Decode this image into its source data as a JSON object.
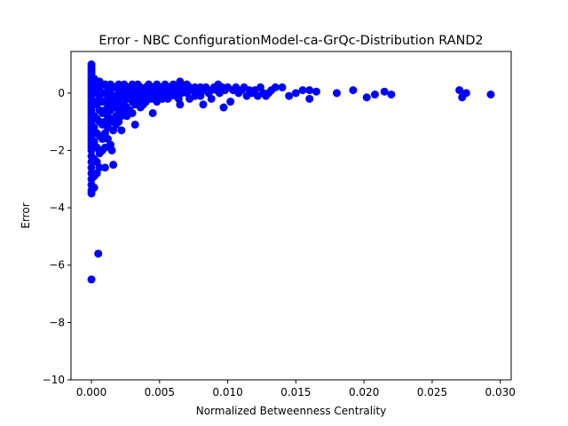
{
  "chart_data": {
    "type": "scatter",
    "title": "Error - NBC ConfigurationModel-ca-GrQc-Distribution RAND2",
    "xlabel": "Normalized Betweenness Centrality",
    "ylabel": "Error",
    "xlim": [
      -0.0015,
      0.0308
    ],
    "ylim": [
      -10,
      1.45
    ],
    "x_ticks": [
      0.0,
      0.005,
      0.01,
      0.015,
      0.02,
      0.025,
      0.03
    ],
    "x_tick_labels": [
      "0.000",
      "0.005",
      "0.010",
      "0.015",
      "0.020",
      "0.025",
      "0.030"
    ],
    "y_ticks": [
      -10,
      -8,
      -6,
      -4,
      -2,
      0
    ],
    "y_tick_labels": [
      "−10",
      "−8",
      "−6",
      "−4",
      "−2",
      "0"
    ],
    "grid": false,
    "legend": "none",
    "marker_color": "#0000ff",
    "points": [
      [
        0.0,
        1.0
      ],
      [
        0.0,
        0.9
      ],
      [
        0.0,
        0.8
      ],
      [
        0.0,
        0.7
      ],
      [
        0.0,
        0.6
      ],
      [
        0.0,
        0.5
      ],
      [
        0.0,
        0.4
      ],
      [
        0.0,
        0.3
      ],
      [
        0.0,
        0.2
      ],
      [
        0.0,
        0.1
      ],
      [
        0.0,
        0.0
      ],
      [
        0.0,
        -0.1
      ],
      [
        0.0,
        -0.2
      ],
      [
        0.0,
        -0.3
      ],
      [
        0.0,
        -0.4
      ],
      [
        0.0,
        -0.5
      ],
      [
        0.0,
        -0.6
      ],
      [
        0.0,
        -0.7
      ],
      [
        0.0,
        -0.8
      ],
      [
        0.0,
        -0.9
      ],
      [
        0.0,
        -1.0
      ],
      [
        0.0,
        -1.1
      ],
      [
        0.0,
        -1.2
      ],
      [
        0.0,
        -1.3
      ],
      [
        0.0,
        -1.4
      ],
      [
        0.0,
        -1.5
      ],
      [
        0.0,
        -1.6
      ],
      [
        0.0,
        -1.7
      ],
      [
        0.0,
        -1.8
      ],
      [
        0.0,
        -1.9
      ],
      [
        0.0,
        -2.0
      ],
      [
        0.0,
        -2.2
      ],
      [
        0.0,
        -2.4
      ],
      [
        0.0,
        -2.6
      ],
      [
        0.0,
        -2.8
      ],
      [
        0.0,
        -3.0
      ],
      [
        0.0,
        -3.2
      ],
      [
        0.0,
        -3.4
      ],
      [
        0.0,
        -3.5
      ],
      [
        0.0,
        -6.5
      ],
      [
        0.0002,
        0.5
      ],
      [
        0.0002,
        0.2
      ],
      [
        0.0002,
        -0.3
      ],
      [
        0.0002,
        -0.8
      ],
      [
        0.0002,
        -1.2
      ],
      [
        0.0002,
        -1.7
      ],
      [
        0.0002,
        -2.3
      ],
      [
        0.0002,
        -2.9
      ],
      [
        0.0002,
        -3.3
      ],
      [
        0.0004,
        0.3
      ],
      [
        0.0004,
        0.0
      ],
      [
        0.0004,
        -0.4
      ],
      [
        0.0004,
        -0.9
      ],
      [
        0.0004,
        -1.4
      ],
      [
        0.0004,
        -1.9
      ],
      [
        0.0004,
        -2.4
      ],
      [
        0.0004,
        -2.8
      ],
      [
        0.0005,
        -5.6
      ],
      [
        0.0006,
        0.4
      ],
      [
        0.0006,
        0.1
      ],
      [
        0.0006,
        -0.2
      ],
      [
        0.0006,
        -0.6
      ],
      [
        0.0006,
        -1.0
      ],
      [
        0.0006,
        -1.5
      ],
      [
        0.0006,
        -2.1
      ],
      [
        0.0006,
        -2.6
      ],
      [
        0.0008,
        0.3
      ],
      [
        0.0008,
        0.0
      ],
      [
        0.0008,
        -0.3
      ],
      [
        0.0008,
        -0.7
      ],
      [
        0.0008,
        -1.1
      ],
      [
        0.0008,
        -1.6
      ],
      [
        0.0008,
        -2.0
      ],
      [
        0.001,
        0.3
      ],
      [
        0.001,
        0.0
      ],
      [
        0.001,
        -0.3
      ],
      [
        0.001,
        -0.6
      ],
      [
        0.001,
        -1.0
      ],
      [
        0.001,
        -1.4
      ],
      [
        0.001,
        -1.9
      ],
      [
        0.001,
        -2.6
      ],
      [
        0.0012,
        0.2
      ],
      [
        0.0012,
        -0.1
      ],
      [
        0.0012,
        -0.4
      ],
      [
        0.0012,
        -0.8
      ],
      [
        0.0012,
        -1.2
      ],
      [
        0.0012,
        -1.6
      ],
      [
        0.0014,
        0.3
      ],
      [
        0.0014,
        0.0
      ],
      [
        0.0014,
        -0.3
      ],
      [
        0.0014,
        -0.6
      ],
      [
        0.0014,
        -1.0
      ],
      [
        0.0014,
        -1.8
      ],
      [
        0.0015,
        -2.0
      ],
      [
        0.0016,
        0.2
      ],
      [
        0.0016,
        -0.2
      ],
      [
        0.0016,
        -0.5
      ],
      [
        0.0016,
        -0.9
      ],
      [
        0.0016,
        -1.3
      ],
      [
        0.0016,
        -2.5
      ],
      [
        0.0018,
        0.2
      ],
      [
        0.0018,
        -0.1
      ],
      [
        0.0018,
        -0.4
      ],
      [
        0.0018,
        -0.8
      ],
      [
        0.0018,
        -1.1
      ],
      [
        0.002,
        0.3
      ],
      [
        0.002,
        0.0
      ],
      [
        0.002,
        -0.3
      ],
      [
        0.002,
        -0.6
      ],
      [
        0.002,
        -1.0
      ],
      [
        0.0022,
        0.2
      ],
      [
        0.0022,
        -0.2
      ],
      [
        0.0022,
        -0.5
      ],
      [
        0.0022,
        -0.8
      ],
      [
        0.0024,
        0.3
      ],
      [
        0.0024,
        0.0
      ],
      [
        0.0024,
        -0.3
      ],
      [
        0.0024,
        -0.6
      ],
      [
        0.0026,
        0.2
      ],
      [
        0.0026,
        -0.1
      ],
      [
        0.0026,
        -0.5
      ],
      [
        0.0026,
        -0.8
      ],
      [
        0.0028,
        0.1
      ],
      [
        0.0028,
        -0.2
      ],
      [
        0.0028,
        -0.6
      ],
      [
        0.003,
        0.3
      ],
      [
        0.003,
        0.0
      ],
      [
        0.003,
        -0.3
      ],
      [
        0.003,
        -0.7
      ],
      [
        0.0022,
        -1.3
      ],
      [
        0.0032,
        0.2
      ],
      [
        0.0032,
        -0.1
      ],
      [
        0.0032,
        -0.4
      ],
      [
        0.0034,
        0.3
      ],
      [
        0.0034,
        0.0
      ],
      [
        0.0034,
        -0.3
      ],
      [
        0.0036,
        0.2
      ],
      [
        0.0036,
        -0.1
      ],
      [
        0.0036,
        -0.5
      ],
      [
        0.0038,
        0.1
      ],
      [
        0.0038,
        -0.2
      ],
      [
        0.0038,
        -0.4
      ],
      [
        0.004,
        0.2
      ],
      [
        0.004,
        -0.1
      ],
      [
        0.004,
        -0.3
      ],
      [
        0.0042,
        0.3
      ],
      [
        0.0042,
        0.0
      ],
      [
        0.0042,
        -0.2
      ],
      [
        0.0044,
        0.1
      ],
      [
        0.0044,
        -0.2
      ],
      [
        0.0046,
        0.2
      ],
      [
        0.0046,
        -0.1
      ],
      [
        0.0045,
        -0.7
      ],
      [
        0.0048,
        0.3
      ],
      [
        0.0048,
        0.0
      ],
      [
        0.0048,
        -0.3
      ],
      [
        0.0032,
        -1.1
      ],
      [
        0.005,
        0.2
      ],
      [
        0.005,
        -0.1
      ],
      [
        0.0052,
        0.1
      ],
      [
        0.0052,
        -0.2
      ],
      [
        0.0054,
        0.3
      ],
      [
        0.0054,
        0.0
      ],
      [
        0.0056,
        0.2
      ],
      [
        0.0056,
        -0.2
      ],
      [
        0.0058,
        0.1
      ],
      [
        0.0058,
        -0.1
      ],
      [
        0.006,
        0.3
      ],
      [
        0.006,
        0.0
      ],
      [
        0.0062,
        0.2
      ],
      [
        0.0062,
        -0.1
      ],
      [
        0.0064,
        0.1
      ],
      [
        0.0064,
        -0.2
      ],
      [
        0.0065,
        0.4
      ],
      [
        0.0066,
        0.3
      ],
      [
        0.0066,
        0.0
      ],
      [
        0.0068,
        0.1
      ],
      [
        0.0065,
        -0.4
      ],
      [
        0.007,
        0.3
      ],
      [
        0.007,
        0.0
      ],
      [
        0.0072,
        0.2
      ],
      [
        0.0072,
        -0.2
      ],
      [
        0.0074,
        0.1
      ],
      [
        0.0076,
        0.2
      ],
      [
        0.0076,
        -0.1
      ],
      [
        0.0078,
        0.0
      ],
      [
        0.008,
        0.2
      ],
      [
        0.008,
        -0.1
      ],
      [
        0.0082,
        0.1
      ],
      [
        0.0082,
        -0.4
      ],
      [
        0.0084,
        0.2
      ],
      [
        0.0086,
        0.0
      ],
      [
        0.0088,
        0.1
      ],
      [
        0.0088,
        -0.2
      ],
      [
        0.009,
        0.2
      ],
      [
        0.0092,
        0.1
      ],
      [
        0.0093,
        0.3
      ],
      [
        0.0094,
        0.0
      ],
      [
        0.0096,
        0.2
      ],
      [
        0.0097,
        -0.5
      ],
      [
        0.0098,
        0.1
      ],
      [
        0.01,
        0.2
      ],
      [
        0.0102,
        -0.3
      ],
      [
        0.0104,
        0.1
      ],
      [
        0.0106,
        0.2
      ],
      [
        0.0108,
        0.0
      ],
      [
        0.011,
        0.1
      ],
      [
        0.0112,
        0.2
      ],
      [
        0.0114,
        -0.1
      ],
      [
        0.0116,
        0.1
      ],
      [
        0.0118,
        0.0
      ],
      [
        0.012,
        0.1
      ],
      [
        0.0122,
        -0.1
      ],
      [
        0.0124,
        0.2
      ],
      [
        0.0126,
        0.0
      ],
      [
        0.0128,
        -0.1
      ],
      [
        0.013,
        0.0
      ],
      [
        0.0132,
        0.1
      ],
      [
        0.0135,
        0.2
      ],
      [
        0.014,
        0.2
      ],
      [
        0.0145,
        -0.1
      ],
      [
        0.015,
        0.0
      ],
      [
        0.0155,
        0.1
      ],
      [
        0.016,
        0.1
      ],
      [
        0.016,
        -0.2
      ],
      [
        0.0165,
        0.05
      ],
      [
        0.018,
        0.0
      ],
      [
        0.0192,
        0.1
      ],
      [
        0.0202,
        -0.15
      ],
      [
        0.0208,
        -0.05
      ],
      [
        0.0215,
        0.05
      ],
      [
        0.022,
        -0.05
      ],
      [
        0.027,
        0.1
      ],
      [
        0.0272,
        -0.15
      ],
      [
        0.0275,
        0.0
      ],
      [
        0.0293,
        -0.05
      ]
    ]
  }
}
